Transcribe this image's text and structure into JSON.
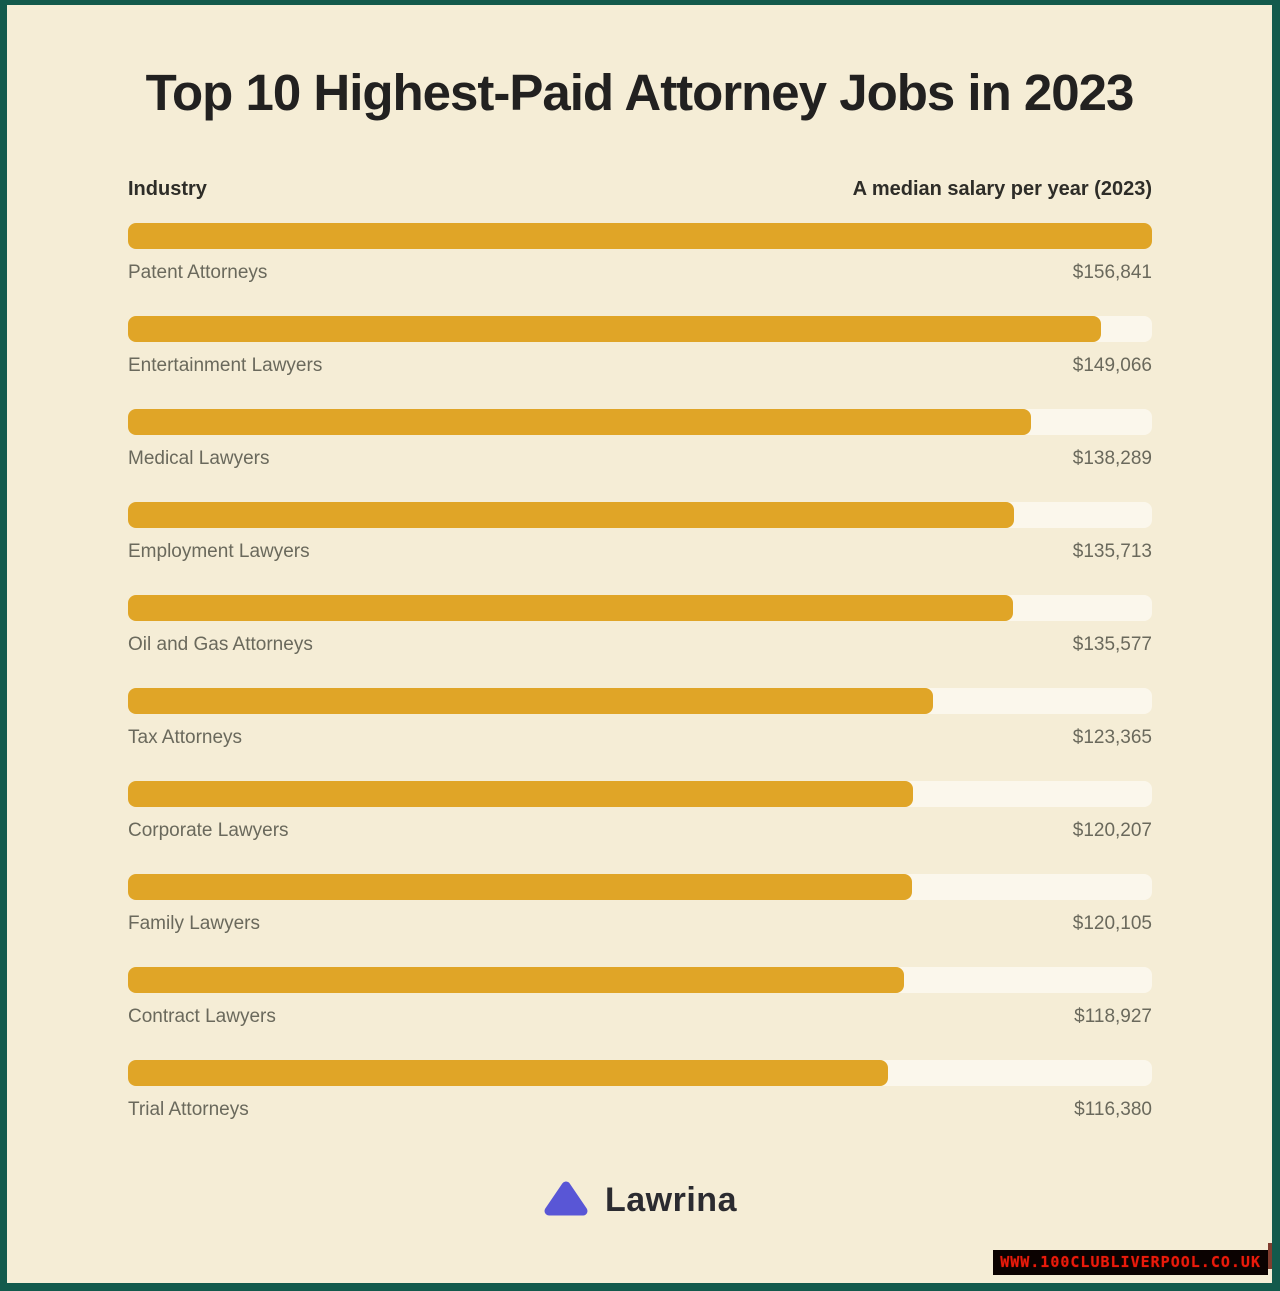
{
  "title": "Top 10 Highest-Paid Attorney Jobs in 2023",
  "table": {
    "industry_header": "Industry",
    "salary_header": "A median salary per year (2023)"
  },
  "chart_data": {
    "type": "bar",
    "orientation": "horizontal",
    "title": "Top 10 Highest-Paid Attorney Jobs in 2023",
    "categories": [
      "Patent Attorneys",
      "Entertainment Lawyers",
      "Medical Lawyers",
      "Employment Lawyers",
      "Oil and Gas Attorneys",
      "Tax Attorneys",
      "Corporate Lawyers",
      "Family Lawyers",
      "Contract Lawyers",
      "Trial Attorneys"
    ],
    "values": [
      156841,
      149066,
      138289,
      135713,
      135577,
      123365,
      120207,
      120105,
      118927,
      116380
    ],
    "value_labels": [
      "$156,841",
      "$149,066",
      "$138,289",
      "$135,713",
      "$135,577",
      "$123,365",
      "$120,207",
      "$120,105",
      "$118,927",
      "$116,380"
    ],
    "max_value": 156841,
    "xlabel": "A median salary per year (2023)",
    "ylabel": "Industry",
    "grid": false,
    "legend": false
  },
  "colors": {
    "background": "#f5edd6",
    "frame_border": "#135a4c",
    "bar": "#e0a527",
    "bar_track": "#fbf7ec",
    "title_text": "#222120",
    "label_text": "#6a695c",
    "logo_triangle": "#5956d6",
    "watermark_background": "#0b0201",
    "watermark_text": "#ea1a0b"
  },
  "footer": {
    "brand": "Lawrina"
  },
  "watermark": {
    "text": "WWW.100CLUBLIVERPOOL.CO.UK"
  }
}
